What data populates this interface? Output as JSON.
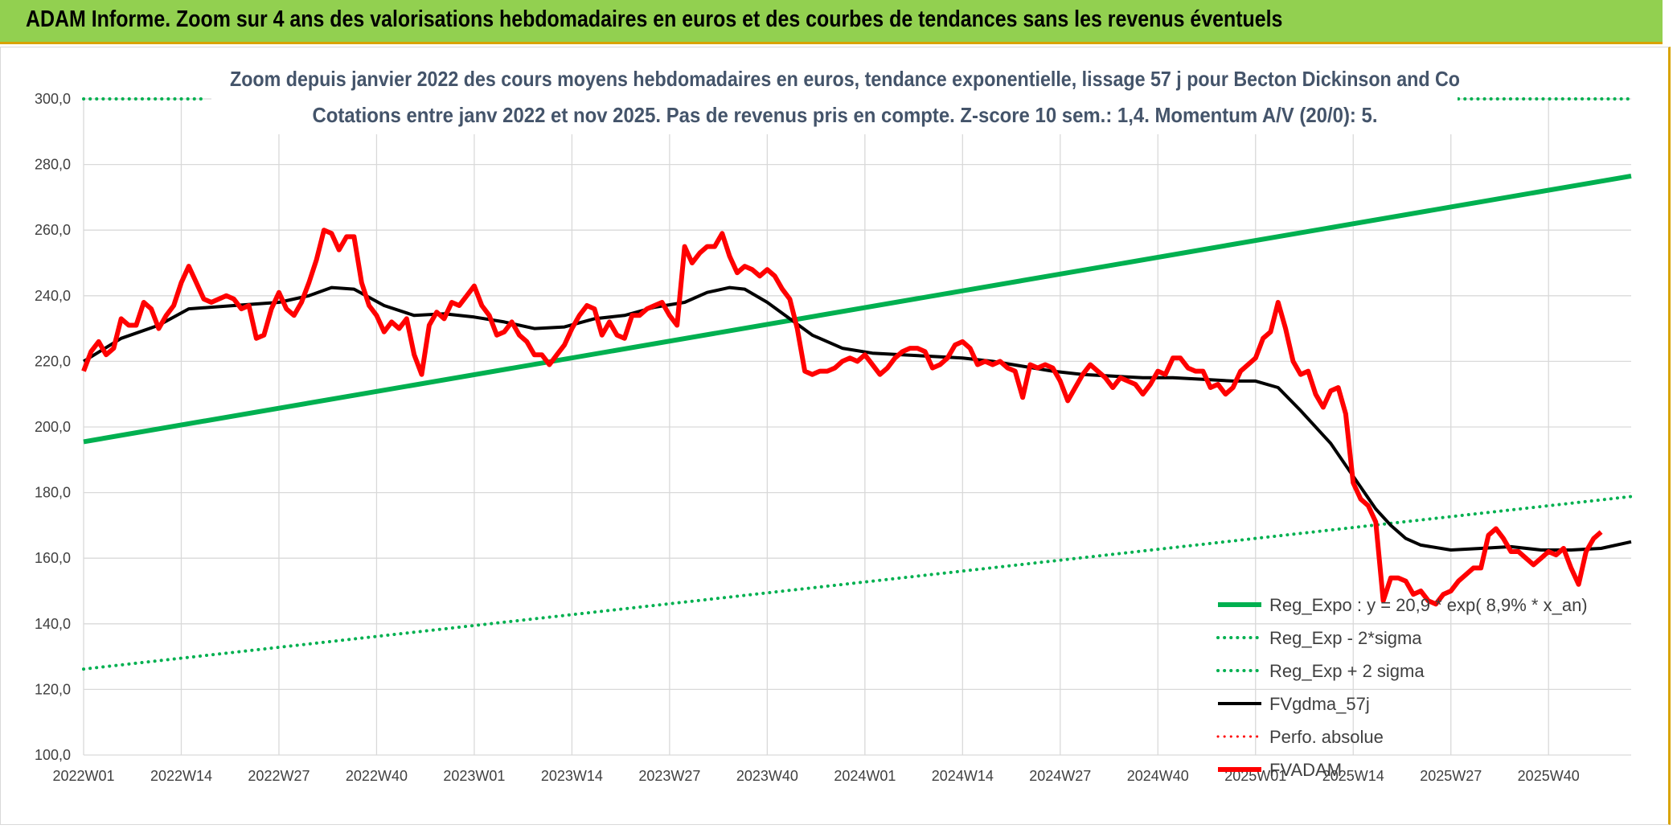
{
  "banner": {
    "title": "ADAM Informe. Zoom sur 4 ans des valorisations hebdomadaires en euros et des courbes de tendances sans les revenus éventuels"
  },
  "colors": {
    "banner_bg": "#92d050",
    "accent_border": "#d9a300",
    "trend_green": "#00b050",
    "price_red": "#ff0000",
    "smooth_black": "#000000",
    "title_text": "#44546a",
    "grid": "#d9d9d9"
  },
  "chart_data": {
    "type": "line",
    "title": "Zoom depuis janvier 2022 des cours moyens hebdomadaires en euros, tendance exponentielle, lissage 57 j pour Becton Dickinson and Co",
    "subtitle": "Cotations entre janv 2022 et nov 2025. Pas de revenus pris en compte. Z-score 10 sem.: 1,4. Momentum A/V (20/0): 5.",
    "xlabel": "",
    "ylabel": "",
    "ylim": [
      100,
      300
    ],
    "yticks": [
      "300,0",
      "280,0",
      "260,0",
      "240,0",
      "220,0",
      "200,0",
      "180,0",
      "160,0",
      "140,0",
      "120,0",
      "100,0"
    ],
    "ytick_values": [
      300,
      280,
      260,
      240,
      220,
      200,
      180,
      160,
      140,
      120,
      100
    ],
    "x_ticks": [
      "2022W01",
      "2022W14",
      "2022W27",
      "2022W40",
      "2023W01",
      "2023W14",
      "2023W27",
      "2023W40",
      "2024W01",
      "2024W14",
      "2024W27",
      "2024W40",
      "2025W01",
      "2025W14",
      "2025W27",
      "2025W40"
    ],
    "x_tick_index": [
      0,
      13,
      26,
      39,
      52,
      65,
      78,
      91,
      104,
      117,
      130,
      143,
      156,
      169,
      182,
      195
    ],
    "n_weeks": 207,
    "grid": true,
    "legend_position": "bottom-right",
    "series": [
      {
        "name": "Reg_Expo : y = 20,9 * exp( 8,9% * x_an)",
        "style": "solid",
        "color": "#00b050",
        "width": 6,
        "points": [
          [
            0,
            195.5
          ],
          [
            206,
            276.5
          ]
        ]
      },
      {
        "name": "Reg_Exp - 2*sigma",
        "style": "dotted",
        "color": "#00b050",
        "width": 4,
        "points": [
          [
            0,
            126.2
          ],
          [
            206,
            178.8
          ]
        ]
      },
      {
        "name": "Reg_Exp + 2 sigma",
        "style": "dotted",
        "color": "#00b050",
        "width": 4,
        "points": [
          [
            0,
            300
          ],
          [
            16,
            300
          ],
          [
            null,
            null
          ],
          [
            183,
            300
          ],
          [
            206,
            300
          ]
        ]
      },
      {
        "name": "FVgdma_57j",
        "style": "solid",
        "color": "#000000",
        "width": 4,
        "points": [
          [
            0,
            220
          ],
          [
            5,
            227
          ],
          [
            10,
            231
          ],
          [
            14,
            236
          ],
          [
            20,
            237
          ],
          [
            26,
            238
          ],
          [
            30,
            240
          ],
          [
            33,
            242.5
          ],
          [
            36,
            242
          ],
          [
            40,
            237
          ],
          [
            44,
            234
          ],
          [
            48,
            234.5
          ],
          [
            52,
            233.5
          ],
          [
            56,
            232
          ],
          [
            60,
            230
          ],
          [
            64,
            230.5
          ],
          [
            68,
            233
          ],
          [
            72,
            234
          ],
          [
            76,
            236.5
          ],
          [
            80,
            238
          ],
          [
            83,
            241
          ],
          [
            86,
            242.5
          ],
          [
            88,
            242
          ],
          [
            91,
            238
          ],
          [
            94,
            233
          ],
          [
            97,
            228
          ],
          [
            101,
            224
          ],
          [
            105,
            222.5
          ],
          [
            109,
            222
          ],
          [
            113,
            221.5
          ],
          [
            117,
            221
          ],
          [
            121,
            220
          ],
          [
            125,
            218.5
          ],
          [
            129,
            217
          ],
          [
            133,
            216
          ],
          [
            137,
            215.5
          ],
          [
            141,
            215
          ],
          [
            145,
            215
          ],
          [
            149,
            214.5
          ],
          [
            153,
            214
          ],
          [
            156,
            214
          ],
          [
            159,
            212
          ],
          [
            162,
            205
          ],
          [
            166,
            195
          ],
          [
            169,
            185
          ],
          [
            172,
            175
          ],
          [
            174,
            170
          ],
          [
            176,
            166
          ],
          [
            178,
            164
          ],
          [
            182,
            162.5
          ],
          [
            186,
            163
          ],
          [
            190,
            163.5
          ],
          [
            194,
            162.5
          ],
          [
            198,
            162.5
          ],
          [
            202,
            163
          ],
          [
            206,
            165
          ]
        ]
      },
      {
        "name": "Perfo. absolue",
        "style": "dotted",
        "color": "#ff0000",
        "width": 3,
        "points": []
      },
      {
        "name": "FVADAM",
        "style": "solid",
        "color": "#ff0000",
        "width": 6,
        "points": [
          [
            0,
            217
          ],
          [
            1,
            223
          ],
          [
            2,
            226
          ],
          [
            3,
            222
          ],
          [
            4,
            224
          ],
          [
            5,
            233
          ],
          [
            6,
            231
          ],
          [
            7,
            231
          ],
          [
            8,
            238
          ],
          [
            9,
            236
          ],
          [
            10,
            230
          ],
          [
            11,
            234
          ],
          [
            12,
            237
          ],
          [
            13,
            244
          ],
          [
            14,
            249
          ],
          [
            15,
            244
          ],
          [
            16,
            239
          ],
          [
            17,
            238
          ],
          [
            18,
            239
          ],
          [
            19,
            240
          ],
          [
            20,
            239
          ],
          [
            21,
            236
          ],
          [
            22,
            237
          ],
          [
            23,
            227
          ],
          [
            24,
            228
          ],
          [
            25,
            236
          ],
          [
            26,
            241
          ],
          [
            27,
            236
          ],
          [
            28,
            234
          ],
          [
            29,
            238
          ],
          [
            30,
            244
          ],
          [
            31,
            251
          ],
          [
            32,
            260
          ],
          [
            33,
            259
          ],
          [
            34,
            254
          ],
          [
            35,
            258
          ],
          [
            36,
            258
          ],
          [
            37,
            244
          ],
          [
            38,
            237
          ],
          [
            39,
            234
          ],
          [
            40,
            229
          ],
          [
            41,
            232
          ],
          [
            42,
            230
          ],
          [
            43,
            233
          ],
          [
            44,
            222
          ],
          [
            45,
            216
          ],
          [
            46,
            231
          ],
          [
            47,
            235
          ],
          [
            48,
            233
          ],
          [
            49,
            238
          ],
          [
            50,
            237
          ],
          [
            51,
            240
          ],
          [
            52,
            243
          ],
          [
            53,
            237
          ],
          [
            54,
            234
          ],
          [
            55,
            228
          ],
          [
            56,
            229
          ],
          [
            57,
            232
          ],
          [
            58,
            228
          ],
          [
            59,
            226
          ],
          [
            60,
            222
          ],
          [
            61,
            222
          ],
          [
            62,
            219
          ],
          [
            63,
            222
          ],
          [
            64,
            225
          ],
          [
            65,
            230
          ],
          [
            66,
            234
          ],
          [
            67,
            237
          ],
          [
            68,
            236
          ],
          [
            69,
            228
          ],
          [
            70,
            232
          ],
          [
            71,
            228
          ],
          [
            72,
            227
          ],
          [
            73,
            234
          ],
          [
            74,
            234
          ],
          [
            75,
            236
          ],
          [
            76,
            237
          ],
          [
            77,
            238
          ],
          [
            78,
            234
          ],
          [
            79,
            231
          ],
          [
            80,
            255
          ],
          [
            81,
            250
          ],
          [
            82,
            253
          ],
          [
            83,
            255
          ],
          [
            84,
            255
          ],
          [
            85,
            259
          ],
          [
            86,
            252
          ],
          [
            87,
            247
          ],
          [
            88,
            249
          ],
          [
            89,
            248
          ],
          [
            90,
            246
          ],
          [
            91,
            248
          ],
          [
            92,
            246
          ],
          [
            93,
            242
          ],
          [
            94,
            239
          ],
          [
            95,
            230
          ],
          [
            96,
            217
          ],
          [
            97,
            216
          ],
          [
            98,
            217
          ],
          [
            99,
            217
          ],
          [
            100,
            218
          ],
          [
            101,
            220
          ],
          [
            102,
            221
          ],
          [
            103,
            220
          ],
          [
            104,
            222
          ],
          [
            105,
            219
          ],
          [
            106,
            216
          ],
          [
            107,
            218
          ],
          [
            108,
            221
          ],
          [
            109,
            223
          ],
          [
            110,
            224
          ],
          [
            111,
            224
          ],
          [
            112,
            223
          ],
          [
            113,
            218
          ],
          [
            114,
            219
          ],
          [
            115,
            221
          ],
          [
            116,
            225
          ],
          [
            117,
            226
          ],
          [
            118,
            224
          ],
          [
            119,
            219
          ],
          [
            120,
            220
          ],
          [
            121,
            219
          ],
          [
            122,
            220
          ],
          [
            123,
            218
          ],
          [
            124,
            217
          ],
          [
            125,
            209
          ],
          [
            126,
            219
          ],
          [
            127,
            218
          ],
          [
            128,
            219
          ],
          [
            129,
            218
          ],
          [
            130,
            214
          ],
          [
            131,
            208
          ],
          [
            132,
            212
          ],
          [
            133,
            216
          ],
          [
            134,
            219
          ],
          [
            135,
            217
          ],
          [
            136,
            215
          ],
          [
            137,
            212
          ],
          [
            138,
            215
          ],
          [
            139,
            214
          ],
          [
            140,
            213
          ],
          [
            141,
            210
          ],
          [
            142,
            213
          ],
          [
            143,
            217
          ],
          [
            144,
            216
          ],
          [
            145,
            221
          ],
          [
            146,
            221
          ],
          [
            147,
            218
          ],
          [
            148,
            217
          ],
          [
            149,
            217
          ],
          [
            150,
            212
          ],
          [
            151,
            213
          ],
          [
            152,
            210
          ],
          [
            153,
            212
          ],
          [
            154,
            217
          ],
          [
            155,
            219
          ],
          [
            156,
            221
          ],
          [
            157,
            227
          ],
          [
            158,
            229
          ],
          [
            159,
            238
          ],
          [
            160,
            230
          ],
          [
            161,
            220
          ],
          [
            162,
            216
          ],
          [
            163,
            217
          ],
          [
            164,
            210
          ],
          [
            165,
            206
          ],
          [
            166,
            211
          ],
          [
            167,
            212
          ],
          [
            168,
            204
          ],
          [
            169,
            183
          ],
          [
            170,
            178
          ],
          [
            171,
            176
          ],
          [
            172,
            171
          ],
          [
            173,
            147
          ],
          [
            174,
            154
          ],
          [
            175,
            154
          ],
          [
            176,
            153
          ],
          [
            177,
            149
          ],
          [
            178,
            150
          ],
          [
            179,
            147
          ],
          [
            180,
            146
          ],
          [
            181,
            149
          ],
          [
            182,
            150
          ],
          [
            183,
            153
          ],
          [
            184,
            155
          ],
          [
            185,
            157
          ],
          [
            186,
            157
          ],
          [
            187,
            167
          ],
          [
            188,
            169
          ],
          [
            189,
            166
          ],
          [
            190,
            162
          ],
          [
            191,
            162
          ],
          [
            192,
            160
          ],
          [
            193,
            158
          ],
          [
            194,
            160
          ],
          [
            195,
            162
          ],
          [
            196,
            161
          ],
          [
            197,
            163
          ],
          [
            198,
            157
          ],
          [
            199,
            152
          ],
          [
            200,
            162
          ],
          [
            201,
            166
          ],
          [
            202,
            168
          ]
        ]
      }
    ]
  }
}
